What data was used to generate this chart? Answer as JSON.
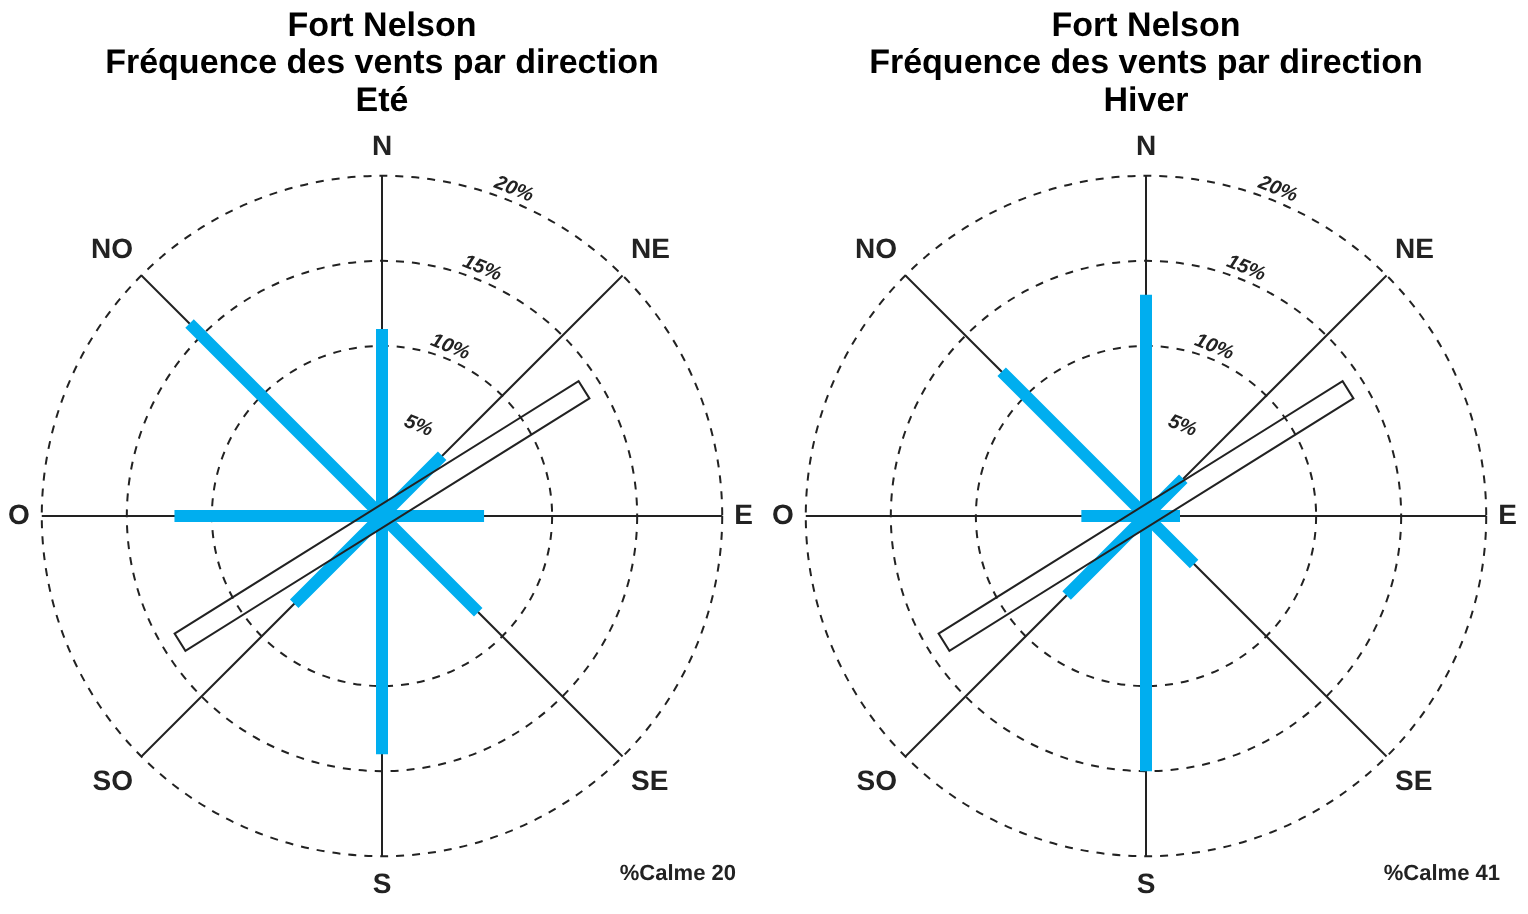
{
  "chart_data": [
    {
      "type": "radar",
      "title": "Fort Nelson\nFréquence des vents par direction\nEté",
      "categories": [
        "N",
        "NE",
        "E",
        "SE",
        "S",
        "SO",
        "O",
        "NO"
      ],
      "series": [
        {
          "color": "#00aeef",
          "values": [
            11,
            5,
            6,
            8,
            14,
            7.3,
            12.2,
            16
          ]
        }
      ],
      "ylim": [
        0,
        20
      ],
      "yticks": [
        {
          "value": 5,
          "label": "5%"
        },
        {
          "value": 10,
          "label": "10%"
        },
        {
          "value": 15,
          "label": "15%"
        },
        {
          "value": 20,
          "label": "20%"
        }
      ],
      "grid": true,
      "legend": false,
      "annotations": [
        "%Calme 20"
      ]
    },
    {
      "type": "radar",
      "title": "Fort Nelson\nFréquence des vents par direction\nHiver",
      "categories": [
        "N",
        "NE",
        "E",
        "SE",
        "S",
        "SO",
        "O",
        "NO"
      ],
      "series": [
        {
          "color": "#00aeef",
          "values": [
            13,
            3.1,
            2,
            4,
            15,
            6.6,
            3.8,
            12
          ]
        }
      ],
      "ylim": [
        0,
        20
      ],
      "yticks": [
        {
          "value": 5,
          "label": "5%"
        },
        {
          "value": 10,
          "label": "10%"
        },
        {
          "value": 15,
          "label": "15%"
        },
        {
          "value": 20,
          "label": "20%"
        }
      ],
      "grid": true,
      "legend": false,
      "annotations": [
        "%Calme 41"
      ]
    }
  ]
}
